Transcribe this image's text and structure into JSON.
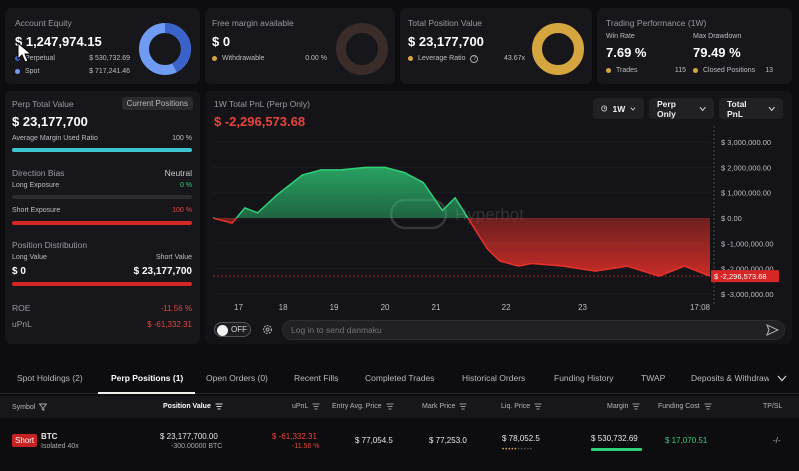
{
  "equity": {
    "title": "Account Equity",
    "value": "$ 1,247,974.15",
    "perp_label": "Perpetual",
    "perp_value": "$ 530,732.69",
    "spot_label": "Spot",
    "spot_value": "$ 717,241.46",
    "perp_share": 0.425,
    "colors": {
      "perp": "#3a63c9",
      "spot": "#6f9cf2"
    }
  },
  "margin": {
    "title": "Free margin available",
    "value": "$ 0",
    "withdrawable_label": "Withdrawable",
    "withdrawable_value": "0.00 %",
    "colors": {
      "dot": "#d5a640",
      "ring": "#3a2c28"
    }
  },
  "position": {
    "title": "Total Position Value",
    "value": "$ 23,177,700",
    "leverage_label": "Leverage Ratio",
    "leverage_icon": "help-circle-icon",
    "leverage_value": "43.67x",
    "colors": {
      "ring": "#d5a640",
      "dot": "#d5a640"
    }
  },
  "performance": {
    "title": "Trading Performance (1W)",
    "win_rate_label": "Win Rate",
    "win_rate": "7.69 %",
    "drawdown_label": "Max Drawdown",
    "drawdown": "79.49 %",
    "trades_label": "Trades",
    "trades": "115",
    "closed_label": "Closed Positions",
    "closed": "13"
  },
  "perp": {
    "title": "Perp Total Value",
    "badge": "Current Positions",
    "value": "$ 23,177,700",
    "margin_ratio_label": "Average Margin Used Ratio",
    "margin_ratio": "100 %",
    "margin_ratio_fraction": 1.0,
    "bias_label": "Direction Bias",
    "bias_value": "Neutral",
    "long_exp_label": "Long Exposure",
    "long_exp": "0 %",
    "long_exp_fraction": 0,
    "short_exp_label": "Short Exposure",
    "short_exp": "100 %",
    "short_exp_fraction": 1.0,
    "dist_label": "Position Distribution",
    "long_value_label": "Long Value",
    "short_value_label": "Short Value",
    "long_value": "$ 0",
    "short_value": "$ 23,177,700",
    "roe_label": "ROE",
    "roe": "-11.56 %",
    "upnl_label": "uPnL",
    "upnl": "$ -61,332.31"
  },
  "pnl_chart": {
    "title": "1W Total PnL (Perp Only)",
    "value": "$ -2,296,573.68",
    "period": "1W",
    "mode": "Perp Only",
    "metric": "Total PnL",
    "watermark": "Hyperbot",
    "current_label": "$ -2,296,573.68"
  },
  "chart_data": {
    "type": "area",
    "x_ticks": [
      "17",
      "18",
      "19",
      "20",
      "21",
      "22",
      "23",
      "17:08"
    ],
    "y_ticks": [
      "$ 3,000,000.00",
      "$ 2,000,000.00",
      "$ 1,000,000.00",
      "$ 0.00",
      "$ -1,000,000.00",
      "$ -2,000,000.00",
      "$ -3,000,000.00"
    ],
    "ylim": [
      -3400000,
      3400000
    ],
    "xlim": [
      0,
      7.8
    ],
    "x": [
      0,
      0.3,
      0.5,
      0.7,
      1.0,
      1.4,
      1.7,
      2.0,
      2.4,
      2.7,
      3.0,
      3.3,
      3.6,
      3.8,
      4.0,
      4.3,
      4.5,
      4.8,
      5.0,
      5.5,
      6.0,
      6.5,
      7.0,
      7.4,
      7.8
    ],
    "y": [
      0,
      -200000,
      400000,
      200000,
      900000,
      1700000,
      1900000,
      1900000,
      2000000,
      2000000,
      1800000,
      1400000,
      300000,
      800000,
      0,
      -1200000,
      -1700000,
      -1900000,
      -1800000,
      -1900000,
      -2100000,
      -1900000,
      -2300000,
      -1900000,
      -2300000
    ],
    "colors": {
      "positive": "#2fd07a",
      "negative": "#e8302a"
    }
  },
  "danmaku": {
    "toggle_label": "OFF",
    "gear_icon": "gear-icon",
    "placeholder": "Log in to send danmaku",
    "send_icon": "send-icon"
  },
  "tabs": [
    "Spot Holdings (2)",
    "Perp Positions (1)",
    "Open Orders (0)",
    "Recent Fills",
    "Completed Trades",
    "Historical Orders",
    "Funding History",
    "TWAP",
    "Deposits & Withdraw"
  ],
  "table": {
    "headers": [
      "Symbol",
      "Position Value",
      "uPnL",
      "Entry Avg. Price",
      "Mark Price",
      "Liq. Price",
      "Margin",
      "Funding Cost",
      "TP/SL"
    ],
    "row": {
      "side": "Short",
      "symbol": "BTC",
      "mode": "Isolated 40x",
      "position_value": "$ 23,177,700.00",
      "position_size": "-300.00000 BTC",
      "upnl": "$ -61,332.31",
      "upnl_pct": "-11.56 %",
      "entry": "$ 77,054.5",
      "mark": "$ 77,253.0",
      "liq": "$ 78,052.5",
      "margin": "$ 530,732.69",
      "funding": "$ 17,070.51",
      "tpsl": "-/-"
    }
  }
}
